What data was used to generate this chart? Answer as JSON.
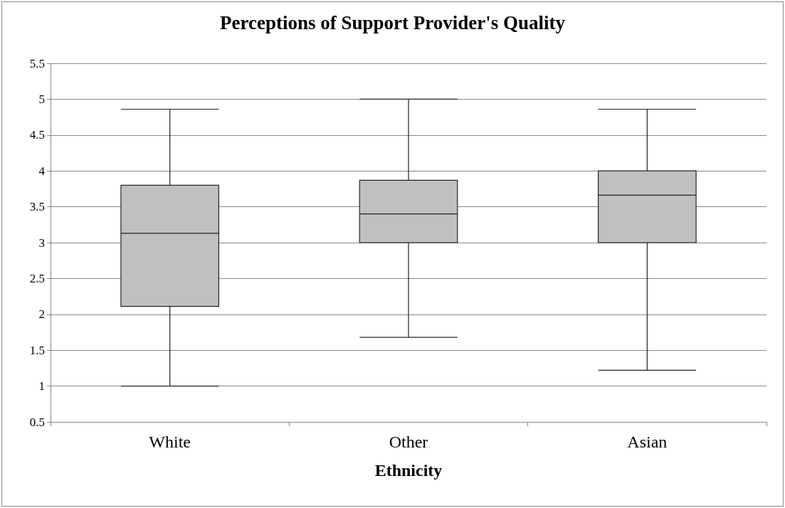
{
  "chart_data": {
    "type": "box",
    "title": "Perceptions of Support Provider's Quality",
    "xlabel": "Ethnicity",
    "categories": [
      "White",
      "Other",
      "Asian"
    ],
    "boxes": [
      {
        "low": 1.0,
        "q1": 2.11,
        "median": 3.13,
        "q3": 3.8,
        "high": 4.86
      },
      {
        "low": 1.68,
        "q1": 3.0,
        "median": 3.4,
        "q3": 3.87,
        "high": 5.0
      },
      {
        "low": 1.22,
        "q1": 3.0,
        "median": 3.66,
        "q3": 4.0,
        "high": 4.86
      }
    ],
    "color": "#c0c0c0",
    "ylim": [
      0.5,
      5.5
    ],
    "yticks": [
      0.5,
      1,
      1.5,
      2,
      2.5,
      3,
      3.5,
      4,
      4.5,
      5,
      5.5
    ],
    "grid": "y"
  }
}
